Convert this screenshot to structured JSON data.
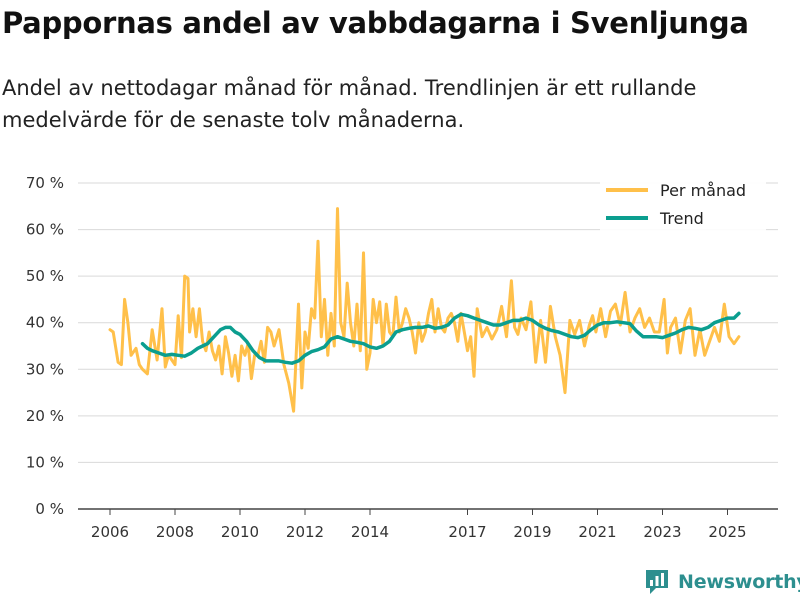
{
  "chart_data": {
    "type": "line",
    "title": "Pappornas andel av vabbdagarna i Svenljunga",
    "subtitle": "Andel av nettodagar månad för månad. Trendlinjen är ett rullande medelvärde för de senaste tolv månaderna.",
    "ylim": [
      0,
      70
    ],
    "yticks": [
      0,
      10,
      20,
      30,
      40,
      50,
      60,
      70
    ],
    "ytick_labels": [
      "0 %",
      "10 %",
      "20 %",
      "30 %",
      "40 %",
      "50 %",
      "60 %",
      "70 %"
    ],
    "xlim": [
      2006.0,
      2025.75
    ],
    "xticks": [
      2006,
      2008,
      2010,
      2012,
      2014,
      2017,
      2019,
      2021,
      2023,
      2025
    ],
    "xtick_labels": [
      "2006",
      "2008",
      "2010",
      "2012",
      "2014",
      "2017",
      "2019",
      "2021",
      "2023",
      "2025"
    ],
    "grid": true,
    "legend_position": "top-right",
    "series": [
      {
        "name": "Per månad",
        "color": "#ffc04a",
        "x": [
          2006.0,
          2006.1,
          2006.25,
          2006.35,
          2006.45,
          2006.55,
          2006.65,
          2006.8,
          2006.9,
          2007.0,
          2007.15,
          2007.3,
          2007.45,
          2007.6,
          2007.7,
          2007.8,
          2007.9,
          2008.0,
          2008.1,
          2008.2,
          2008.3,
          2008.4,
          2008.45,
          2008.55,
          2008.65,
          2008.75,
          2008.85,
          2008.95,
          2009.05,
          2009.15,
          2009.25,
          2009.35,
          2009.45,
          2009.55,
          2009.65,
          2009.75,
          2009.85,
          2009.95,
          2010.05,
          2010.15,
          2010.25,
          2010.35,
          2010.45,
          2010.55,
          2010.65,
          2010.75,
          2010.85,
          2010.95,
          2011.05,
          2011.2,
          2011.35,
          2011.5,
          2011.65,
          2011.8,
          2011.9,
          2012.0,
          2012.1,
          2012.2,
          2012.3,
          2012.4,
          2012.5,
          2012.6,
          2012.7,
          2012.8,
          2012.9,
          2013.0,
          2013.1,
          2013.2,
          2013.3,
          2013.4,
          2013.5,
          2013.6,
          2013.7,
          2013.8,
          2013.9,
          2014.0,
          2014.1,
          2014.2,
          2014.3,
          2014.4,
          2014.5,
          2014.6,
          2014.7,
          2014.8,
          2014.9,
          2015.0,
          2015.1,
          2015.2,
          2015.3,
          2015.4,
          2015.5,
          2015.6,
          2015.7,
          2015.8,
          2015.9,
          2016.0,
          2016.1,
          2016.2,
          2016.3,
          2016.4,
          2016.5,
          2016.6,
          2016.7,
          2016.8,
          2016.9,
          2017.0,
          2017.1,
          2017.2,
          2017.3,
          2017.45,
          2017.6,
          2017.75,
          2017.9,
          2018.05,
          2018.2,
          2018.35,
          2018.45,
          2018.55,
          2018.65,
          2018.8,
          2018.95,
          2019.1,
          2019.25,
          2019.4,
          2019.55,
          2019.7,
          2019.85,
          2020.0,
          2020.15,
          2020.3,
          2020.45,
          2020.6,
          2020.75,
          2020.85,
          2020.95,
          2021.1,
          2021.25,
          2021.4,
          2021.55,
          2021.7,
          2021.85,
          2022.0,
          2022.15,
          2022.3,
          2022.45,
          2022.6,
          2022.75,
          2022.9,
          2023.05,
          2023.15,
          2023.25,
          2023.4,
          2023.55,
          2023.7,
          2023.85,
          2024.0,
          2024.15,
          2024.3,
          2024.45,
          2024.6,
          2024.75,
          2024.9,
          2025.05,
          2025.2,
          2025.35
        ],
        "values": [
          38.5,
          38.0,
          31.5,
          31.0,
          45.0,
          40.0,
          33.0,
          34.5,
          31.0,
          30.0,
          29.0,
          38.5,
          32.0,
          43.0,
          30.5,
          33.0,
          32.0,
          31.0,
          41.5,
          32.5,
          50.0,
          49.5,
          38.0,
          43.0,
          37.0,
          43.0,
          36.0,
          34.0,
          38.0,
          34.0,
          32.0,
          35.0,
          29.0,
          37.0,
          33.5,
          28.5,
          33.0,
          27.5,
          35.0,
          33.0,
          35.5,
          28.0,
          33.0,
          33.0,
          36.0,
          31.5,
          39.0,
          38.0,
          35.0,
          38.5,
          31.0,
          27.0,
          21.0,
          44.0,
          26.0,
          38.0,
          34.5,
          43.0,
          41.0,
          57.5,
          37.0,
          45.0,
          33.0,
          42.0,
          35.0,
          64.5,
          40.0,
          37.0,
          48.5,
          40.0,
          35.0,
          44.0,
          34.0,
          55.0,
          30.0,
          33.5,
          45.0,
          40.0,
          44.5,
          35.0,
          44.0,
          38.0,
          37.0,
          45.5,
          38.0,
          40.0,
          43.0,
          41.0,
          38.0,
          33.5,
          40.0,
          36.0,
          38.0,
          42.0,
          45.0,
          38.0,
          43.0,
          39.0,
          38.0,
          41.0,
          42.0,
          40.0,
          36.0,
          42.0,
          38.0,
          34.0,
          37.0,
          28.5,
          43.0,
          37.0,
          39.0,
          36.5,
          38.5,
          43.5,
          37.0,
          49.0,
          39.0,
          37.5,
          41.0,
          38.5,
          44.5,
          31.5,
          40.5,
          31.5,
          43.5,
          37.0,
          33.0,
          25.0,
          40.5,
          37.5,
          40.5,
          35.0,
          39.5,
          41.5,
          38.0,
          43.0,
          37.0,
          42.5,
          44.0,
          39.5,
          46.5,
          38.0,
          41.0,
          43.0,
          39.0,
          41.0,
          38.0,
          38.0,
          45.0,
          33.5,
          39.0,
          41.0,
          33.5,
          40.5,
          43.0,
          33.0,
          38.5,
          33.0,
          36.0,
          39.0,
          36.0,
          44.0,
          37.0,
          35.5,
          37.0
        ]
      },
      {
        "name": "Trend",
        "color": "#0b9e8f",
        "x": [
          2007.0,
          2007.15,
          2007.3,
          2007.5,
          2007.7,
          2007.9,
          2008.1,
          2008.3,
          2008.5,
          2008.7,
          2008.85,
          2009.0,
          2009.2,
          2009.4,
          2009.55,
          2009.7,
          2009.85,
          2010.0,
          2010.2,
          2010.4,
          2010.6,
          2010.8,
          2011.0,
          2011.2,
          2011.4,
          2011.6,
          2011.8,
          2012.0,
          2012.2,
          2012.4,
          2012.6,
          2012.8,
          2013.0,
          2013.2,
          2013.4,
          2013.6,
          2013.8,
          2014.0,
          2014.2,
          2014.4,
          2014.6,
          2014.8,
          2015.0,
          2015.2,
          2015.4,
          2015.6,
          2015.8,
          2016.0,
          2016.2,
          2016.4,
          2016.6,
          2016.8,
          2017.0,
          2017.2,
          2017.4,
          2017.6,
          2017.8,
          2018.0,
          2018.2,
          2018.4,
          2018.6,
          2018.8,
          2019.0,
          2019.2,
          2019.4,
          2019.6,
          2019.8,
          2020.0,
          2020.2,
          2020.4,
          2020.6,
          2020.8,
          2021.0,
          2021.2,
          2021.4,
          2021.6,
          2021.8,
          2022.0,
          2022.2,
          2022.4,
          2022.6,
          2022.8,
          2023.0,
          2023.2,
          2023.4,
          2023.6,
          2023.8,
          2024.0,
          2024.2,
          2024.4,
          2024.6,
          2024.8,
          2025.0,
          2025.2,
          2025.35
        ],
        "values": [
          35.5,
          34.5,
          34.0,
          33.5,
          33.0,
          33.2,
          33.0,
          32.8,
          33.5,
          34.5,
          35.0,
          35.5,
          37.0,
          38.5,
          39.0,
          39.0,
          38.0,
          37.5,
          36.0,
          34.0,
          32.5,
          31.8,
          31.8,
          31.8,
          31.5,
          31.3,
          31.8,
          33.0,
          33.8,
          34.2,
          34.8,
          36.5,
          37.0,
          36.5,
          36.0,
          35.8,
          35.5,
          34.8,
          34.5,
          35.0,
          36.0,
          38.0,
          38.5,
          38.8,
          39.0,
          39.0,
          39.3,
          38.8,
          39.0,
          39.5,
          41.0,
          41.8,
          41.5,
          41.0,
          40.5,
          40.0,
          39.5,
          39.5,
          40.0,
          40.5,
          40.5,
          41.0,
          40.5,
          39.5,
          38.8,
          38.3,
          38.0,
          37.5,
          37.0,
          36.8,
          37.3,
          38.5,
          39.5,
          40.0,
          40.0,
          40.2,
          40.0,
          39.8,
          38.2,
          37.0,
          37.0,
          37.0,
          36.8,
          37.3,
          37.8,
          38.5,
          39.0,
          38.8,
          38.5,
          39.0,
          40.0,
          40.5,
          41.0,
          41.0,
          42.0
        ]
      }
    ]
  },
  "footer": {
    "brand": "Newsworthy"
  }
}
